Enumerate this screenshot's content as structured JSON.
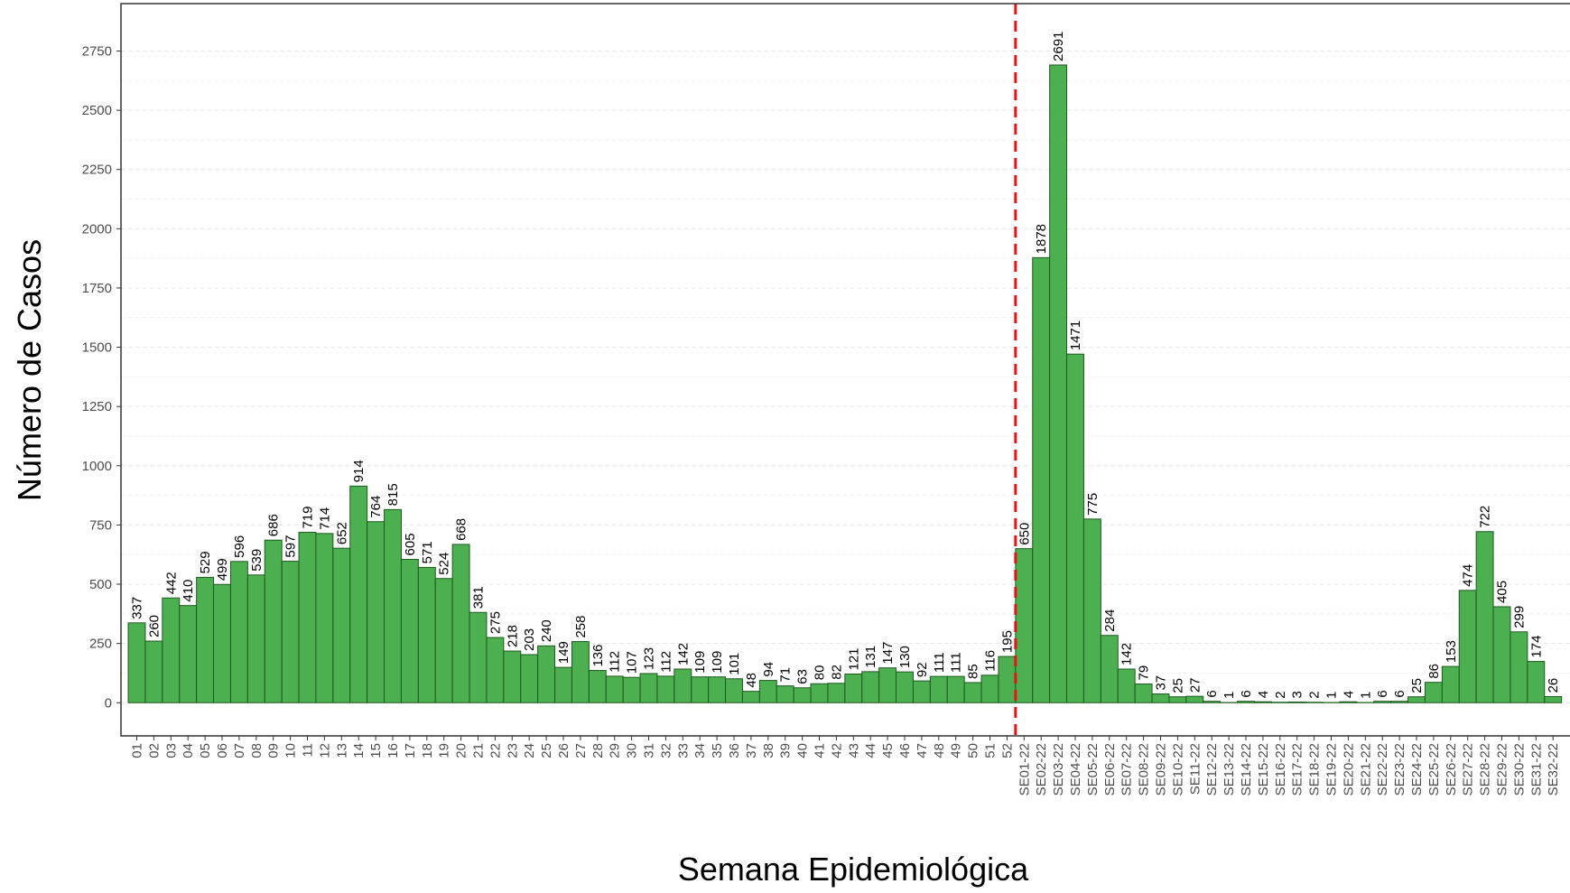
{
  "chart_data": {
    "type": "bar",
    "x_label": "Semana Epidemiológica",
    "y_label": "Número de Casos",
    "categories": [
      "01",
      "02",
      "03",
      "04",
      "05",
      "06",
      "07",
      "08",
      "09",
      "10",
      "11",
      "12",
      "13",
      "14",
      "15",
      "16",
      "17",
      "18",
      "19",
      "20",
      "21",
      "22",
      "23",
      "24",
      "25",
      "26",
      "27",
      "28",
      "29",
      "30",
      "31",
      "32",
      "33",
      "34",
      "35",
      "36",
      "37",
      "38",
      "39",
      "40",
      "41",
      "42",
      "43",
      "44",
      "45",
      "46",
      "47",
      "48",
      "49",
      "50",
      "51",
      "52",
      "SE01-22",
      "SE02-22",
      "SE03-22",
      "SE04-22",
      "SE05-22",
      "SE06-22",
      "SE07-22",
      "SE08-22",
      "SE09-22",
      "SE10-22",
      "SE11-22",
      "SE12-22",
      "SE13-22",
      "SE14-22",
      "SE15-22",
      "SE16-22",
      "SE17-22",
      "SE18-22",
      "SE19-22",
      "SE20-22",
      "SE21-22",
      "SE22-22",
      "SE23-22",
      "SE24-22",
      "SE25-22",
      "SE26-22",
      "SE27-22",
      "SE28-22",
      "SE29-22",
      "SE30-22",
      "SE31-22",
      "SE32-22"
    ],
    "values": [
      337,
      260,
      442,
      410,
      529,
      499,
      596,
      539,
      686,
      597,
      719,
      714,
      652,
      914,
      764,
      815,
      605,
      571,
      524,
      668,
      381,
      275,
      218,
      203,
      240,
      149,
      258,
      136,
      112,
      107,
      123,
      112,
      142,
      109,
      109,
      101,
      48,
      94,
      71,
      63,
      80,
      82,
      121,
      131,
      147,
      130,
      92,
      111,
      111,
      85,
      116,
      195,
      650,
      1878,
      2691,
      1471,
      775,
      284,
      142,
      79,
      37,
      25,
      27,
      6,
      1,
      6,
      4,
      2,
      3,
      2,
      1,
      4,
      1,
      6,
      6,
      25,
      86,
      153,
      474,
      722,
      405,
      299,
      174,
      26
    ],
    "color": "#4caf50",
    "ylim": [
      -140,
      2950
    ],
    "yticks": [
      0,
      250,
      500,
      750,
      1000,
      1250,
      1500,
      1750,
      2000,
      2250,
      2500,
      2750
    ],
    "grid": true
  }
}
